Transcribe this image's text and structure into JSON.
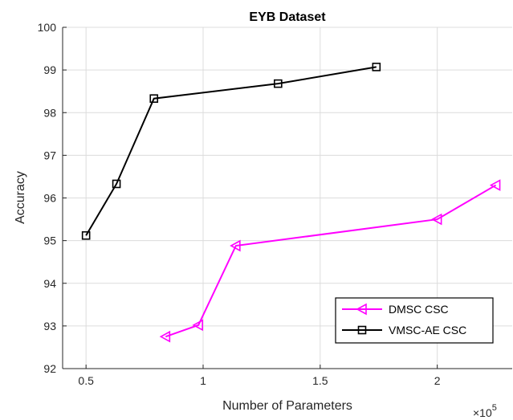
{
  "chart_data": {
    "type": "line",
    "title": "EYB Dataset",
    "xlabel": "Number of Parameters",
    "ylabel": "Accuracy",
    "x_exponent_label": "×10",
    "x_exponent_power": "5",
    "x_scale_factor": 100000,
    "xlim": [
      40000,
      232000
    ],
    "ylim": [
      92,
      100
    ],
    "xticks": [
      0.5,
      1,
      1.5,
      2
    ],
    "xtick_labels": [
      "0.5",
      "1",
      "1.5",
      "2"
    ],
    "yticks": [
      92,
      93,
      94,
      95,
      96,
      97,
      98,
      99,
      100
    ],
    "ytick_labels": [
      "92",
      "93",
      "94",
      "95",
      "96",
      "97",
      "98",
      "99",
      "100"
    ],
    "grid": true,
    "legend_position": "bottom-right",
    "series": [
      {
        "name": "DMSC CSC",
        "color": "#ff00ff",
        "marker": "triangle-left",
        "x": [
          84000,
          98000,
          114000,
          200000,
          225000
        ],
        "y": [
          92.75,
          93.02,
          94.88,
          95.5,
          96.3
        ]
      },
      {
        "name": "VMSC-AE CSC",
        "color": "#000000",
        "marker": "square",
        "x": [
          50000,
          63000,
          79000,
          132000,
          174000
        ],
        "y": [
          95.12,
          96.33,
          98.33,
          98.68,
          99.07
        ]
      }
    ]
  }
}
